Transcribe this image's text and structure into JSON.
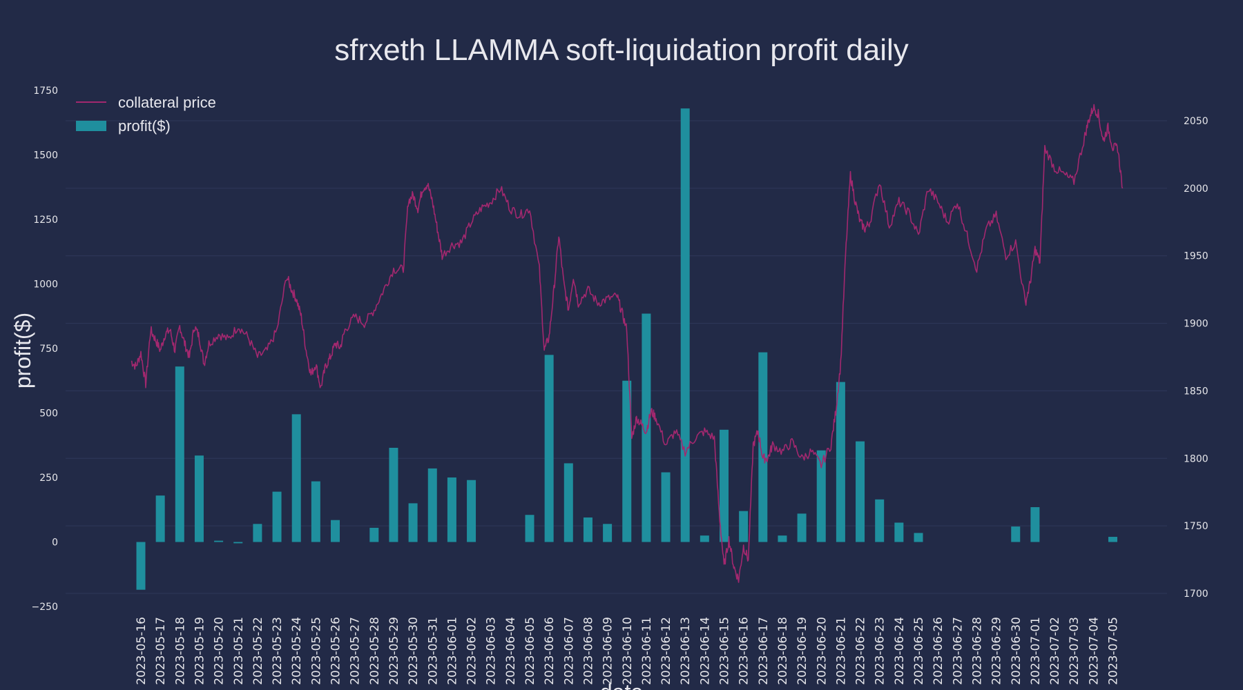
{
  "chart_data": {
    "type": "bar",
    "title": "sfrxeth LLAMMA soft-liquidation profit daily",
    "xlabel": "date",
    "ylabel": "profit($)",
    "ylim": [
      -250,
      1750
    ],
    "y2lim": [
      1700,
      2065
    ],
    "yticks": [
      "−250",
      "0",
      "250",
      "500",
      "750",
      "1000",
      "1250",
      "1500",
      "1750"
    ],
    "y2ticks": [
      "1700",
      "1750",
      "1800",
      "1850",
      "1900",
      "1950",
      "2000",
      "2050"
    ],
    "grid": true,
    "legend_position": "top-left",
    "colors": {
      "background": "#222a47",
      "bar": "#1f8f9e",
      "line": "#a3286f"
    },
    "categories": [
      "2023-05-16",
      "2023-05-17",
      "2023-05-18",
      "2023-05-19",
      "2023-05-20",
      "2023-05-21",
      "2023-05-22",
      "2023-05-23",
      "2023-05-24",
      "2023-05-25",
      "2023-05-26",
      "2023-05-27",
      "2023-05-28",
      "2023-05-29",
      "2023-05-30",
      "2023-05-31",
      "2023-06-01",
      "2023-06-02",
      "2023-06-03",
      "2023-06-04",
      "2023-06-05",
      "2023-06-06",
      "2023-06-07",
      "2023-06-08",
      "2023-06-09",
      "2023-06-10",
      "2023-06-11",
      "2023-06-12",
      "2023-06-13",
      "2023-06-14",
      "2023-06-15",
      "2023-06-16",
      "2023-06-17",
      "2023-06-18",
      "2023-06-19",
      "2023-06-20",
      "2023-06-21",
      "2023-06-22",
      "2023-06-23",
      "2023-06-24",
      "2023-06-25",
      "2023-06-26",
      "2023-06-27",
      "2023-06-28",
      "2023-06-29",
      "2023-06-30",
      "2023-07-01",
      "2023-07-02",
      "2023-07-03",
      "2023-07-04",
      "2023-07-05"
    ],
    "series": [
      {
        "name": "profit($)",
        "type": "bar",
        "axis": "left",
        "values": [
          -185,
          180,
          680,
          335,
          5,
          -5,
          70,
          195,
          495,
          235,
          85,
          0,
          55,
          365,
          150,
          285,
          250,
          240,
          0,
          0,
          105,
          725,
          305,
          95,
          70,
          625,
          885,
          270,
          1680,
          25,
          435,
          120,
          735,
          25,
          110,
          355,
          620,
          390,
          165,
          75,
          35,
          0,
          0,
          0,
          0,
          60,
          135,
          0,
          0,
          0,
          20
        ]
      },
      {
        "name": "collateral price",
        "type": "line",
        "axis": "right",
        "x": [
          "2023-05-16 00:00",
          "2023-05-16 06:00",
          "2023-05-16 12:00",
          "2023-05-16 18:00",
          "2023-05-17 00:00",
          "2023-05-17 06:00",
          "2023-05-17 12:00",
          "2023-05-17 18:00",
          "2023-05-18 00:00",
          "2023-05-18 06:00",
          "2023-05-18 12:00",
          "2023-05-18 18:00",
          "2023-05-19 00:00",
          "2023-05-19 06:00",
          "2023-05-19 12:00",
          "2023-05-19 18:00",
          "2023-05-20 00:00",
          "2023-05-20 12:00",
          "2023-05-21 00:00",
          "2023-05-21 12:00",
          "2023-05-22 00:00",
          "2023-05-22 12:00",
          "2023-05-23 00:00",
          "2023-05-23 12:00",
          "2023-05-24 00:00",
          "2023-05-24 06:00",
          "2023-05-24 12:00",
          "2023-05-24 18:00",
          "2023-05-25 00:00",
          "2023-05-25 06:00",
          "2023-05-25 12:00",
          "2023-05-25 18:00",
          "2023-05-26 00:00",
          "2023-05-26 06:00",
          "2023-05-26 12:00",
          "2023-05-26 18:00",
          "2023-05-27 00:00",
          "2023-05-27 12:00",
          "2023-05-28 00:00",
          "2023-05-28 12:00",
          "2023-05-29 00:00",
          "2023-05-29 12:00",
          "2023-05-30 00:00",
          "2023-05-30 06:00",
          "2023-05-30 12:00",
          "2023-05-30 18:00",
          "2023-05-31 00:00",
          "2023-05-31 06:00",
          "2023-05-31 12:00",
          "2023-05-31 18:00",
          "2023-06-01 00:00",
          "2023-06-01 12:00",
          "2023-06-02 00:00",
          "2023-06-02 12:00",
          "2023-06-03 00:00",
          "2023-06-03 12:00",
          "2023-06-04 00:00",
          "2023-06-04 12:00",
          "2023-06-05 00:00",
          "2023-06-05 12:00",
          "2023-06-06 00:00",
          "2023-06-06 06:00",
          "2023-06-06 12:00",
          "2023-06-06 18:00",
          "2023-06-07 00:00",
          "2023-06-07 06:00",
          "2023-06-07 12:00",
          "2023-06-07 18:00",
          "2023-06-08 00:00",
          "2023-06-08 12:00",
          "2023-06-09 00:00",
          "2023-06-09 12:00",
          "2023-06-10 00:00",
          "2023-06-10 06:00",
          "2023-06-10 12:00",
          "2023-06-10 18:00",
          "2023-06-11 00:00",
          "2023-06-11 06:00",
          "2023-06-11 12:00",
          "2023-06-11 18:00",
          "2023-06-12 00:00",
          "2023-06-12 12:00",
          "2023-06-13 00:00",
          "2023-06-13 12:00",
          "2023-06-14 00:00",
          "2023-06-14 12:00",
          "2023-06-15 00:00",
          "2023-06-15 06:00",
          "2023-06-15 12:00",
          "2023-06-15 18:00",
          "2023-06-16 00:00",
          "2023-06-16 06:00",
          "2023-06-16 12:00",
          "2023-06-16 18:00",
          "2023-06-17 00:00",
          "2023-06-17 06:00",
          "2023-06-17 12:00",
          "2023-06-17 18:00",
          "2023-06-18 00:00",
          "2023-06-18 12:00",
          "2023-06-19 00:00",
          "2023-06-19 12:00",
          "2023-06-20 00:00",
          "2023-06-20 12:00",
          "2023-06-21 00:00",
          "2023-06-21 06:00",
          "2023-06-21 12:00",
          "2023-06-21 18:00",
          "2023-06-22 00:00",
          "2023-06-22 06:00",
          "2023-06-22 12:00",
          "2023-06-22 18:00",
          "2023-06-23 00:00",
          "2023-06-23 12:00",
          "2023-06-24 00:00",
          "2023-06-24 12:00",
          "2023-06-25 00:00",
          "2023-06-25 12:00",
          "2023-06-26 00:00",
          "2023-06-26 12:00",
          "2023-06-27 00:00",
          "2023-06-27 12:00",
          "2023-06-28 00:00",
          "2023-06-28 12:00",
          "2023-06-29 00:00",
          "2023-06-29 12:00",
          "2023-06-30 00:00",
          "2023-06-30 12:00",
          "2023-07-01 00:00",
          "2023-07-01 06:00",
          "2023-07-01 12:00",
          "2023-07-01 18:00",
          "2023-07-02 00:00",
          "2023-07-02 12:00",
          "2023-07-03 00:00",
          "2023-07-03 12:00",
          "2023-07-04 00:00",
          "2023-07-04 06:00",
          "2023-07-04 12:00",
          "2023-07-04 18:00",
          "2023-07-05 00:00",
          "2023-07-05 06:00",
          "2023-07-05 12:00",
          "2023-07-05 18:00",
          "2023-07-06 00:00"
        ],
        "values": [
          1872,
          1868,
          1878,
          1855,
          1895,
          1888,
          1880,
          1892,
          1895,
          1880,
          1898,
          1885,
          1875,
          1898,
          1890,
          1870,
          1885,
          1892,
          1888,
          1898,
          1890,
          1875,
          1880,
          1895,
          1935,
          1925,
          1918,
          1905,
          1880,
          1862,
          1870,
          1852,
          1868,
          1875,
          1885,
          1882,
          1895,
          1905,
          1900,
          1910,
          1925,
          1940,
          1940,
          1990,
          1995,
          1985,
          2000,
          2003,
          1990,
          1970,
          1950,
          1958,
          1960,
          1975,
          1985,
          1990,
          2000,
          1985,
          1980,
          1985,
          1940,
          1880,
          1890,
          1925,
          1965,
          1930,
          1910,
          1935,
          1915,
          1925,
          1915,
          1918,
          1920,
          1908,
          1895,
          1815,
          1830,
          1825,
          1820,
          1835,
          1830,
          1810,
          1820,
          1805,
          1815,
          1820,
          1815,
          1760,
          1720,
          1740,
          1720,
          1710,
          1735,
          1725,
          1810,
          1820,
          1800,
          1800,
          1810,
          1805,
          1812,
          1800,
          1805,
          1795,
          1810,
          1835,
          1870,
          1950,
          2010,
          1990,
          1975,
          1970,
          1975,
          2005,
          1972,
          1990,
          1982,
          1965,
          2000,
          1990,
          1975,
          1990,
          1965,
          1940,
          1970,
          1980,
          1950,
          1960,
          1915,
          1930,
          1955,
          1945,
          2030,
          2015,
          2010,
          2005,
          2035,
          2050,
          2060,
          2055,
          2035,
          2045,
          2030,
          2030,
          2000
        ]
      }
    ]
  }
}
